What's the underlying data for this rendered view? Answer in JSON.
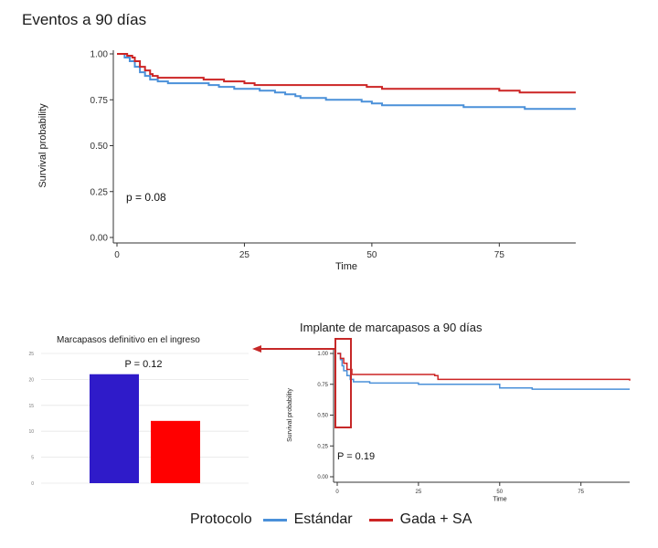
{
  "title": "Eventos a 90 días",
  "colors": {
    "estandar": "#4a90d9",
    "gada_sa": "#cc2424",
    "bar1": "#2f1bc9",
    "bar2": "#ff0000",
    "arrow": "#c62828"
  },
  "legend": {
    "title": "Protocolo",
    "items": [
      "Estándar",
      "Gada + SA"
    ]
  },
  "chart_data": [
    {
      "type": "line",
      "subtype": "kaplan-meier-step",
      "title": "Eventos a 90 días",
      "xlabel": "Time",
      "ylabel": "Survival probability",
      "xlim": [
        0,
        90
      ],
      "ylim": [
        0,
        1
      ],
      "xticks": [
        "0",
        "25",
        "50",
        "75"
      ],
      "yticks": [
        "0.00",
        "0.25",
        "0.50",
        "0.75",
        "1.00"
      ],
      "annotation": "p = 0.08",
      "grid": false,
      "series": [
        {
          "name": "Estándar",
          "color": "#4a90d9",
          "x": [
            0,
            1.5,
            2.5,
            3.5,
            4.5,
            5.5,
            6.5,
            8,
            10,
            18,
            20,
            23,
            28,
            31,
            33,
            35,
            36,
            41,
            48,
            50,
            52,
            68,
            72,
            80,
            90
          ],
          "y": [
            1,
            0.98,
            0.96,
            0.93,
            0.9,
            0.88,
            0.86,
            0.85,
            0.84,
            0.83,
            0.82,
            0.81,
            0.8,
            0.79,
            0.78,
            0.77,
            0.76,
            0.75,
            0.74,
            0.73,
            0.72,
            0.71,
            0.71,
            0.7,
            0.7
          ]
        },
        {
          "name": "Gada + SA",
          "color": "#cc2424",
          "x": [
            0,
            2,
            3,
            3.5,
            4.5,
            5.5,
            6.5,
            7,
            8,
            17,
            21,
            25,
            27,
            36,
            49,
            52,
            75,
            79,
            90
          ],
          "y": [
            1,
            0.99,
            0.98,
            0.96,
            0.93,
            0.91,
            0.89,
            0.88,
            0.87,
            0.86,
            0.85,
            0.84,
            0.83,
            0.83,
            0.82,
            0.81,
            0.8,
            0.79,
            0.79
          ]
        }
      ]
    },
    {
      "type": "line",
      "subtype": "kaplan-meier-step",
      "title": "Implante de marcapasos a 90 días",
      "xlabel": "Time",
      "ylabel": "Survival probability",
      "xlim": [
        0,
        90
      ],
      "ylim": [
        0,
        1
      ],
      "xticks": [
        "0",
        "25",
        "50",
        "75"
      ],
      "yticks": [
        "0.00",
        "0.25",
        "0.50",
        "0.75",
        "1.00"
      ],
      "annotation": "P = 0.19",
      "grid": false,
      "series": [
        {
          "name": "Estándar",
          "color": "#4a90d9",
          "x": [
            0,
            1,
            1.5,
            2,
            3,
            4,
            5,
            10,
            25,
            50,
            60,
            90
          ],
          "y": [
            1,
            0.95,
            0.9,
            0.86,
            0.82,
            0.79,
            0.77,
            0.76,
            0.75,
            0.72,
            0.71,
            0.71
          ]
        },
        {
          "name": "Gada + SA",
          "color": "#cc2424",
          "x": [
            0,
            1,
            2,
            3,
            4.5,
            30,
            31,
            90
          ],
          "y": [
            1,
            0.96,
            0.92,
            0.87,
            0.83,
            0.82,
            0.79,
            0.78
          ]
        }
      ]
    },
    {
      "type": "bar",
      "title": "Marcapasos definitivo en el ingreso",
      "categories": [
        "",
        ""
      ],
      "values": [
        21,
        12
      ],
      "colors": [
        "#2f1bc9",
        "#ff0000"
      ],
      "ylim": [
        0,
        25
      ],
      "yticks": [
        "0",
        "5",
        "10",
        "15",
        "20",
        "25"
      ],
      "annotation": "P = 0.12",
      "grid": true
    }
  ]
}
